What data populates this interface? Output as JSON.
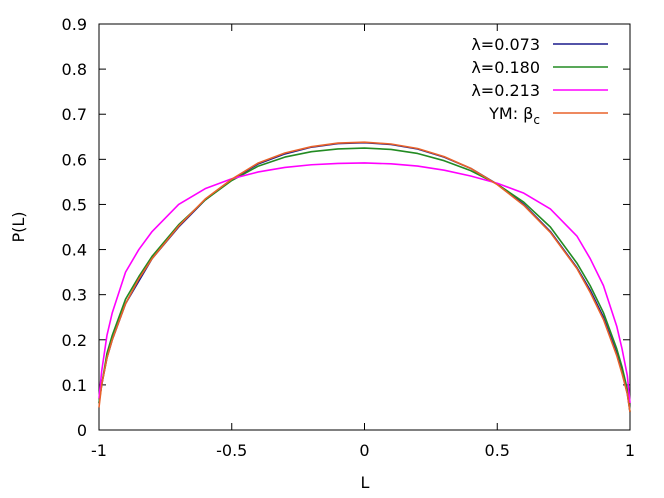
{
  "chart_data": {
    "type": "line",
    "xlabel": "L",
    "ylabel": "P(L)",
    "xlim": [
      -1,
      1
    ],
    "ylim": [
      0,
      0.9
    ],
    "xticks": [
      -1,
      -0.5,
      0,
      0.5,
      1
    ],
    "xtick_labels": [
      "-1",
      "-0.5",
      "0",
      "0.5",
      "1"
    ],
    "yticks": [
      0,
      0.1,
      0.2,
      0.3,
      0.4,
      0.5,
      0.6,
      0.7,
      0.8,
      0.9
    ],
    "ytick_labels": [
      "0",
      "0.1",
      "0.2",
      "0.3",
      "0.4",
      "0.5",
      "0.6",
      "0.7",
      "0.8",
      "0.9"
    ],
    "grid": false,
    "legend_position": "top-right",
    "series": [
      {
        "name": "λ=0.073",
        "color": "#1a1a8c",
        "x": [
          -1,
          -0.99,
          -0.97,
          -0.95,
          -0.9,
          -0.85,
          -0.8,
          -0.7,
          -0.6,
          -0.5,
          -0.4,
          -0.3,
          -0.2,
          -0.1,
          0,
          0.1,
          0.2,
          0.3,
          0.4,
          0.5,
          0.6,
          0.7,
          0.8,
          0.85,
          0.9,
          0.95,
          0.97,
          0.99,
          1
        ],
        "y": [
          0.06,
          0.1,
          0.16,
          0.2,
          0.28,
          0.33,
          0.38,
          0.45,
          0.51,
          0.555,
          0.59,
          0.612,
          0.627,
          0.635,
          0.637,
          0.633,
          0.623,
          0.605,
          0.58,
          0.545,
          0.5,
          0.44,
          0.36,
          0.31,
          0.25,
          0.17,
          0.13,
          0.08,
          0.04
        ]
      },
      {
        "name": "λ=0.180",
        "color": "#228b22",
        "x": [
          -1,
          -0.99,
          -0.97,
          -0.95,
          -0.9,
          -0.85,
          -0.8,
          -0.7,
          -0.6,
          -0.5,
          -0.4,
          -0.3,
          -0.2,
          -0.1,
          0,
          0.1,
          0.2,
          0.3,
          0.4,
          0.5,
          0.6,
          0.7,
          0.8,
          0.85,
          0.9,
          0.95,
          0.97,
          0.99,
          1
        ],
        "y": [
          0.06,
          0.1,
          0.17,
          0.21,
          0.29,
          0.34,
          0.385,
          0.455,
          0.51,
          0.553,
          0.585,
          0.605,
          0.617,
          0.623,
          0.625,
          0.622,
          0.613,
          0.597,
          0.575,
          0.545,
          0.505,
          0.45,
          0.37,
          0.32,
          0.26,
          0.18,
          0.14,
          0.09,
          0.04
        ]
      },
      {
        "name": "λ=0.213",
        "color": "#ff00ff",
        "x": [
          -1,
          -0.99,
          -0.97,
          -0.95,
          -0.9,
          -0.85,
          -0.8,
          -0.7,
          -0.6,
          -0.5,
          -0.4,
          -0.3,
          -0.2,
          -0.1,
          0,
          0.1,
          0.2,
          0.3,
          0.4,
          0.5,
          0.6,
          0.7,
          0.8,
          0.85,
          0.9,
          0.95,
          0.97,
          0.99,
          1
        ],
        "y": [
          0.07,
          0.13,
          0.21,
          0.26,
          0.35,
          0.4,
          0.44,
          0.5,
          0.535,
          0.557,
          0.572,
          0.582,
          0.588,
          0.591,
          0.592,
          0.59,
          0.585,
          0.576,
          0.563,
          0.547,
          0.525,
          0.49,
          0.43,
          0.38,
          0.32,
          0.23,
          0.18,
          0.12,
          0.06
        ]
      },
      {
        "name": "YM: β",
        "name_subscript": "c",
        "color": "#e8622a",
        "x": [
          -1,
          -0.99,
          -0.97,
          -0.95,
          -0.9,
          -0.85,
          -0.8,
          -0.7,
          -0.6,
          -0.5,
          -0.4,
          -0.3,
          -0.2,
          -0.1,
          0,
          0.1,
          0.2,
          0.3,
          0.4,
          0.5,
          0.6,
          0.7,
          0.8,
          0.85,
          0.9,
          0.95,
          0.97,
          0.99,
          1
        ],
        "y": [
          0.05,
          0.1,
          0.16,
          0.2,
          0.28,
          0.335,
          0.38,
          0.452,
          0.512,
          0.556,
          0.592,
          0.614,
          0.628,
          0.636,
          0.638,
          0.634,
          0.624,
          0.606,
          0.58,
          0.544,
          0.498,
          0.438,
          0.358,
          0.305,
          0.245,
          0.165,
          0.125,
          0.08,
          0.04
        ]
      }
    ]
  }
}
